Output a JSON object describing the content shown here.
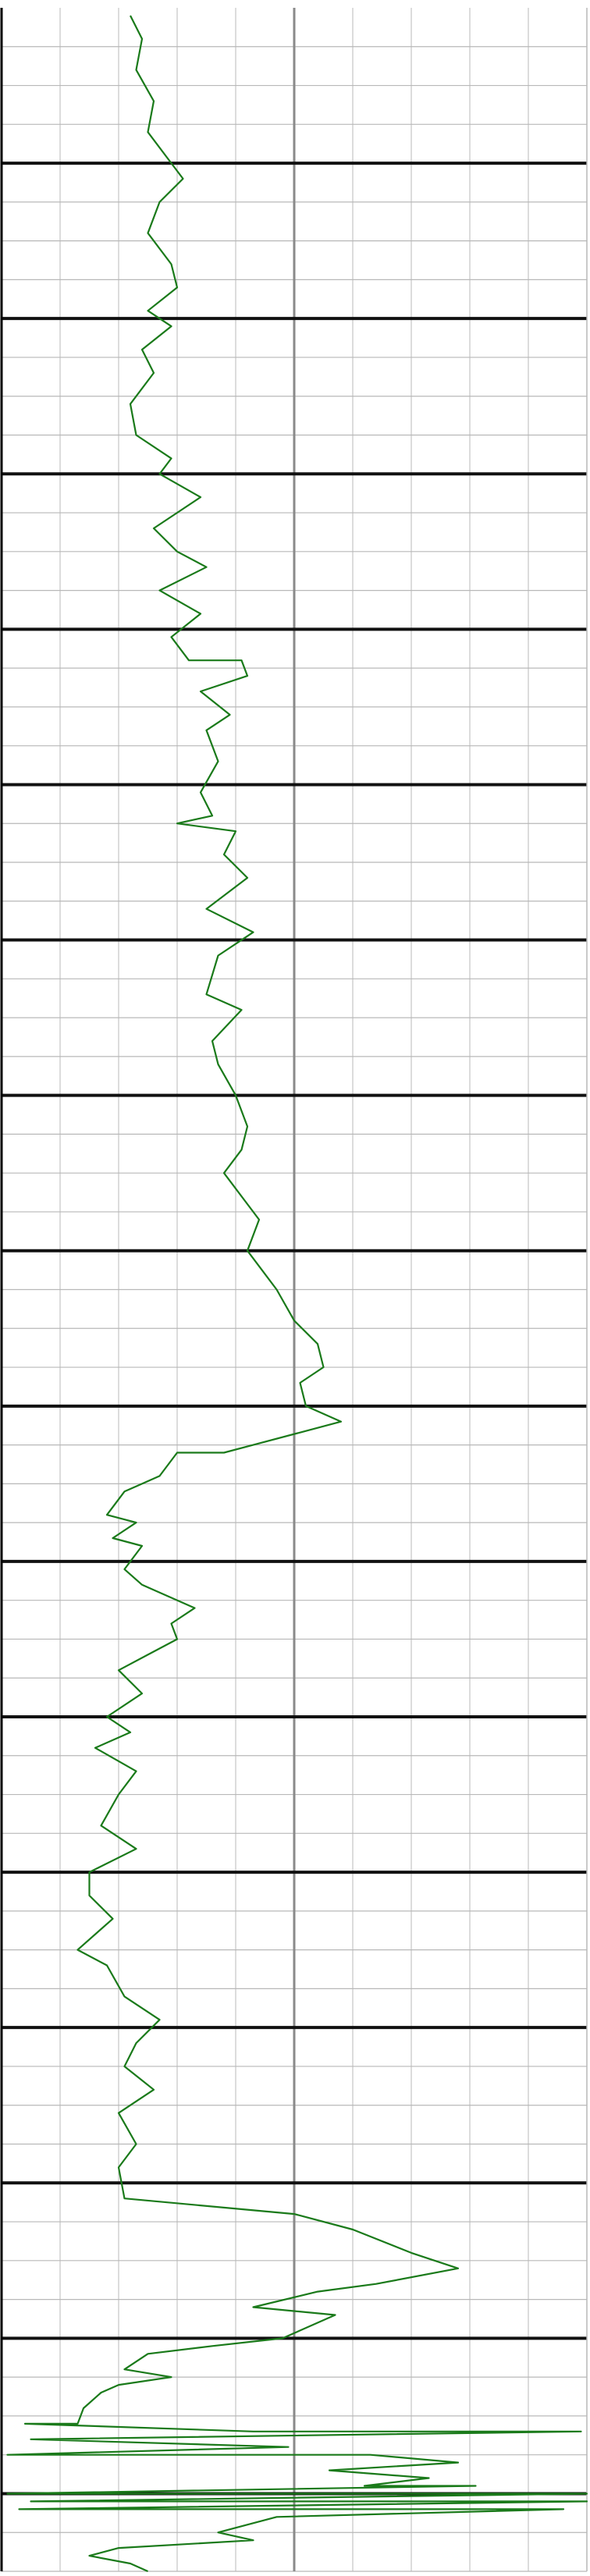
{
  "chart_data": {
    "type": "line",
    "title": "",
    "xlabel": "",
    "ylabel": "",
    "xlim": [
      0,
      10
    ],
    "ylim": [
      0,
      330
    ],
    "x_gridlines": 10,
    "center_line_x": 5,
    "y_minor_step": 5,
    "y_major_step": 20,
    "grid": true,
    "legend": "none",
    "colors": {
      "curve": "#1a7a1a",
      "minor_grid": "#b8b8b8",
      "major_grid": "#111111",
      "center_line": "#8a8a8a",
      "border": "#000000"
    },
    "series": [
      {
        "points": [
          [
            2.2,
            1
          ],
          [
            2.4,
            4
          ],
          [
            2.3,
            8
          ],
          [
            2.6,
            12
          ],
          [
            2.5,
            16
          ],
          [
            2.9,
            20
          ],
          [
            3.1,
            22
          ],
          [
            2.7,
            25
          ],
          [
            2.5,
            29
          ],
          [
            2.9,
            33
          ],
          [
            3.0,
            36
          ],
          [
            2.5,
            39
          ],
          [
            2.9,
            41
          ],
          [
            2.4,
            44
          ],
          [
            2.6,
            47
          ],
          [
            2.2,
            51
          ],
          [
            2.3,
            55
          ],
          [
            2.9,
            58
          ],
          [
            2.7,
            60
          ],
          [
            3.4,
            63
          ],
          [
            2.6,
            67
          ],
          [
            3.0,
            70
          ],
          [
            3.5,
            72
          ],
          [
            2.7,
            75
          ],
          [
            3.4,
            78
          ],
          [
            2.9,
            81
          ],
          [
            3.2,
            84
          ],
          [
            4.1,
            84
          ],
          [
            4.2,
            86
          ],
          [
            3.4,
            88
          ],
          [
            3.9,
            91
          ],
          [
            3.5,
            93
          ],
          [
            3.7,
            97
          ],
          [
            3.4,
            101
          ],
          [
            3.6,
            104
          ],
          [
            3.0,
            105
          ],
          [
            4.0,
            106
          ],
          [
            3.8,
            109
          ],
          [
            4.2,
            112
          ],
          [
            3.5,
            116
          ],
          [
            4.3,
            119
          ],
          [
            3.7,
            122
          ],
          [
            3.5,
            127
          ],
          [
            4.1,
            129
          ],
          [
            3.6,
            133
          ],
          [
            3.7,
            136
          ],
          [
            4.0,
            140
          ],
          [
            4.2,
            144
          ],
          [
            4.1,
            147
          ],
          [
            3.8,
            150
          ],
          [
            4.4,
            156
          ],
          [
            4.2,
            160
          ],
          [
            4.7,
            165
          ],
          [
            5.0,
            169
          ],
          [
            5.4,
            172
          ],
          [
            5.5,
            175
          ],
          [
            5.1,
            177
          ],
          [
            5.2,
            180
          ],
          [
            5.8,
            182
          ],
          [
            4.3,
            185
          ],
          [
            3.8,
            186
          ],
          [
            3.0,
            186
          ],
          [
            2.7,
            189
          ],
          [
            2.1,
            191
          ],
          [
            1.8,
            194
          ],
          [
            2.3,
            195
          ],
          [
            1.9,
            197
          ],
          [
            2.4,
            198
          ],
          [
            2.1,
            201
          ],
          [
            2.4,
            203
          ],
          [
            2.7,
            204
          ],
          [
            3.3,
            206
          ],
          [
            2.9,
            208
          ],
          [
            3.0,
            210
          ],
          [
            2.5,
            212
          ],
          [
            2.0,
            214
          ],
          [
            2.4,
            217
          ],
          [
            1.8,
            220
          ],
          [
            2.2,
            222
          ],
          [
            1.6,
            224
          ],
          [
            2.3,
            227
          ],
          [
            2.0,
            230
          ],
          [
            1.7,
            234
          ],
          [
            2.3,
            237
          ],
          [
            1.5,
            240
          ],
          [
            1.5,
            243
          ],
          [
            1.9,
            246
          ],
          [
            1.3,
            250
          ],
          [
            1.8,
            252
          ],
          [
            2.1,
            256
          ],
          [
            2.7,
            259
          ],
          [
            2.3,
            262
          ],
          [
            2.1,
            265
          ],
          [
            2.6,
            268
          ],
          [
            2.0,
            271
          ],
          [
            2.3,
            275
          ],
          [
            2.0,
            278
          ],
          [
            2.1,
            282
          ],
          [
            5.0,
            284
          ],
          [
            6.0,
            286
          ],
          [
            7.0,
            289
          ],
          [
            7.8,
            291
          ],
          [
            6.4,
            293
          ],
          [
            5.4,
            294
          ],
          [
            4.3,
            296
          ],
          [
            5.7,
            297
          ],
          [
            4.8,
            300
          ],
          [
            3.6,
            301
          ],
          [
            2.5,
            302
          ],
          [
            2.1,
            304
          ],
          [
            2.9,
            305
          ],
          [
            2.0,
            306
          ],
          [
            1.7,
            307
          ],
          [
            1.4,
            309
          ],
          [
            1.3,
            311
          ],
          [
            0.4,
            311
          ],
          [
            4.3,
            312
          ],
          [
            9.9,
            312
          ],
          [
            0.5,
            313
          ],
          [
            4.9,
            314
          ],
          [
            0.1,
            315
          ],
          [
            6.3,
            315
          ],
          [
            7.8,
            316
          ],
          [
            5.6,
            317
          ],
          [
            7.3,
            318
          ],
          [
            6.2,
            319
          ],
          [
            8.1,
            319
          ],
          [
            0.1,
            320
          ],
          [
            10.0,
            320
          ],
          [
            0.5,
            321
          ],
          [
            10.0,
            321
          ],
          [
            0.3,
            322
          ],
          [
            9.6,
            322
          ],
          [
            4.7,
            323
          ],
          [
            3.7,
            325
          ],
          [
            4.3,
            326
          ],
          [
            2.0,
            327
          ],
          [
            1.5,
            328
          ],
          [
            2.2,
            329
          ],
          [
            2.5,
            330
          ]
        ]
      }
    ]
  }
}
